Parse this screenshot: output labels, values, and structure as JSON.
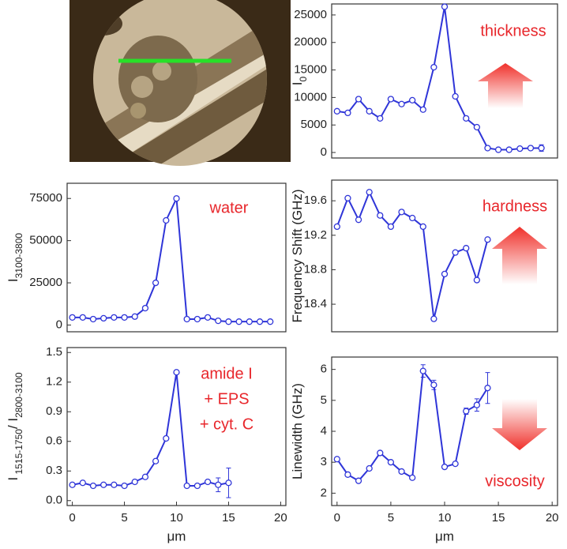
{
  "chart_data": [
    {
      "type": "line",
      "ylabel": [
        {
          "text": "I"
        },
        {
          "text": "0",
          "sub": true
        }
      ],
      "color": "#2f35d8",
      "x": [
        0,
        1,
        2,
        3,
        4,
        5,
        6,
        7,
        8,
        9,
        10,
        11,
        12,
        13,
        14,
        15,
        16,
        17,
        18,
        19
      ],
      "values": [
        7500,
        7200,
        9700,
        7500,
        6200,
        9700,
        8800,
        9500,
        7800,
        15500,
        26500,
        10200,
        6200,
        4600,
        800,
        500,
        500,
        700,
        800,
        800
      ],
      "errors": [
        null,
        null,
        null,
        null,
        null,
        null,
        null,
        null,
        null,
        null,
        null,
        null,
        null,
        null,
        null,
        null,
        null,
        null,
        300,
        600
      ],
      "xlim": [
        -0.5,
        20.5
      ],
      "ylim": [
        -1000,
        27000
      ],
      "yticks": [
        0,
        5000,
        10000,
        15000,
        20000,
        25000
      ],
      "annotations": [
        "thickness"
      ]
    },
    {
      "type": "line",
      "ylabel": [
        {
          "text": "I"
        },
        {
          "text": "3100-3800",
          "sub": true
        }
      ],
      "color": "#2f35d8",
      "x": [
        0,
        1,
        2,
        3,
        4,
        5,
        6,
        7,
        8,
        9,
        10,
        11,
        12,
        13,
        14,
        15,
        16,
        17,
        18,
        19
      ],
      "values": [
        4500,
        4500,
        3500,
        4000,
        4500,
        4500,
        5000,
        10000,
        25000,
        62000,
        75000,
        3500,
        3500,
        4500,
        2500,
        2000,
        2000,
        2000,
        2000,
        2000
      ],
      "xlim": [
        -0.5,
        20.5
      ],
      "ylim": [
        -4000,
        84000
      ],
      "yticks": [
        0,
        25000,
        50000,
        75000
      ],
      "annotations": [
        "water"
      ]
    },
    {
      "type": "line",
      "ylabel": [
        {
          "text": "Frequency Shift (GHz)"
        }
      ],
      "color": "#2f35d8",
      "x": [
        0,
        1,
        2,
        3,
        4,
        5,
        6,
        7,
        8,
        9,
        10,
        11,
        12,
        13,
        14
      ],
      "values": [
        19.3,
        19.63,
        19.38,
        19.7,
        19.43,
        19.3,
        19.47,
        19.4,
        19.3,
        18.23,
        18.75,
        19.0,
        19.05,
        18.68,
        19.15
      ],
      "xlim": [
        -0.5,
        20.5
      ],
      "ylim": [
        18.08,
        19.84
      ],
      "yticks": [
        18.4,
        18.8,
        19.2,
        19.6
      ],
      "annotations": [
        "hardness"
      ]
    },
    {
      "type": "line",
      "ylabel": [
        {
          "text": "I"
        },
        {
          "text": " 1515-1750",
          "sub": true
        },
        {
          "text": "/ I"
        },
        {
          "text": "2800-3100",
          "sub": true
        }
      ],
      "color": "#2f35d8",
      "x": [
        0,
        1,
        2,
        3,
        4,
        5,
        6,
        7,
        8,
        9,
        10,
        11,
        12,
        13,
        14,
        15
      ],
      "values": [
        0.16,
        0.18,
        0.15,
        0.16,
        0.16,
        0.15,
        0.19,
        0.24,
        0.4,
        0.63,
        1.3,
        0.15,
        0.15,
        0.19,
        0.16,
        0.18
      ],
      "errors": [
        null,
        null,
        null,
        null,
        null,
        null,
        null,
        null,
        null,
        null,
        null,
        null,
        null,
        null,
        0.07,
        0.15
      ],
      "xlim": [
        -0.5,
        20.5
      ],
      "ylim": [
        -0.05,
        1.55
      ],
      "yticks": [
        {
          "value": 0,
          "label": "0.0"
        },
        0.3,
        0.6,
        0.9,
        1.2,
        1.5
      ],
      "xticks": [
        0,
        5,
        10,
        15,
        20
      ],
      "xlabel": "μm",
      "annotations": [
        "amide I",
        "+ EPS",
        "+ cyt. C"
      ]
    },
    {
      "type": "line",
      "ylabel": [
        {
          "text": "Linewidth (GHz)"
        }
      ],
      "color": "#2f35d8",
      "x": [
        0,
        1,
        2,
        3,
        4,
        5,
        6,
        7,
        8,
        9,
        10,
        11,
        12,
        13,
        14
      ],
      "values": [
        3.1,
        2.6,
        2.4,
        2.8,
        3.3,
        3.0,
        2.7,
        2.5,
        5.95,
        5.5,
        2.85,
        2.95,
        4.65,
        4.85,
        5.4
      ],
      "errors": [
        null,
        null,
        null,
        null,
        null,
        null,
        null,
        null,
        0.2,
        0.15,
        null,
        null,
        0.1,
        0.2,
        0.5
      ],
      "xlim": [
        -0.5,
        20.5
      ],
      "ylim": [
        1.6,
        6.4
      ],
      "yticks": [
        2,
        3,
        4,
        5,
        6
      ],
      "xticks": [
        0,
        5,
        10,
        15,
        20
      ],
      "xlabel": "μm",
      "annotations": [
        "viscosity"
      ]
    }
  ]
}
